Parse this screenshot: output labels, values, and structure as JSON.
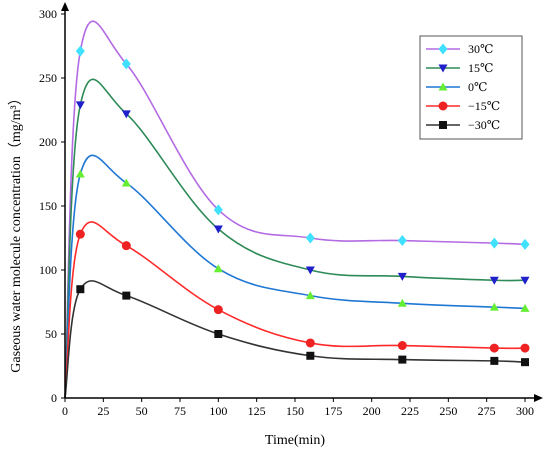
{
  "chart_data": {
    "type": "line",
    "title": "",
    "xlabel": "Time(min)",
    "ylabel": "Gaseous water molecule concentration（mg/m³）",
    "xlim": [
      0,
      300
    ],
    "ylim": [
      0,
      300
    ],
    "xticks": [
      "0",
      "25",
      "50",
      "75",
      "100",
      "125",
      "150",
      "175",
      "200",
      "225",
      "250",
      "275",
      "300"
    ],
    "yticks": [
      "0",
      "50",
      "100",
      "150",
      "200",
      "250",
      "300"
    ],
    "grid": false,
    "legend_position": "top-right",
    "series": [
      {
        "name": "30℃",
        "color": "#b36ae2",
        "marker_color": "#40e0ff",
        "marker": "diamond",
        "x": [
          0,
          10,
          40,
          100,
          160,
          220,
          280,
          300
        ],
        "y": [
          0,
          271,
          261,
          147,
          125,
          123,
          121,
          120
        ]
      },
      {
        "name": "15℃",
        "color": "#2e8b57",
        "marker_color": "#1f1fcc",
        "marker": "triangle-down",
        "x": [
          0,
          10,
          40,
          100,
          160,
          220,
          280,
          300
        ],
        "y": [
          0,
          229,
          222,
          132,
          100,
          95,
          92,
          92
        ]
      },
      {
        "name": "0℃",
        "color": "#1f77d4",
        "marker_color": "#66ee33",
        "marker": "triangle-up",
        "x": [
          0,
          10,
          40,
          100,
          160,
          220,
          280,
          300
        ],
        "y": [
          0,
          175,
          168,
          101,
          80,
          74,
          71,
          70
        ]
      },
      {
        "name": "−15℃",
        "color": "#ff2a2a",
        "marker_color": "#ee2222",
        "marker": "circle",
        "x": [
          0,
          10,
          40,
          100,
          160,
          220,
          280,
          300
        ],
        "y": [
          0,
          128,
          119,
          69,
          43,
          41,
          39,
          39
        ]
      },
      {
        "name": "−30℃",
        "color": "#333333",
        "marker_color": "#111111",
        "marker": "square",
        "x": [
          0,
          10,
          40,
          100,
          160,
          220,
          280,
          300
        ],
        "y": [
          0,
          85,
          80,
          50,
          33,
          30,
          29,
          28
        ]
      }
    ]
  }
}
